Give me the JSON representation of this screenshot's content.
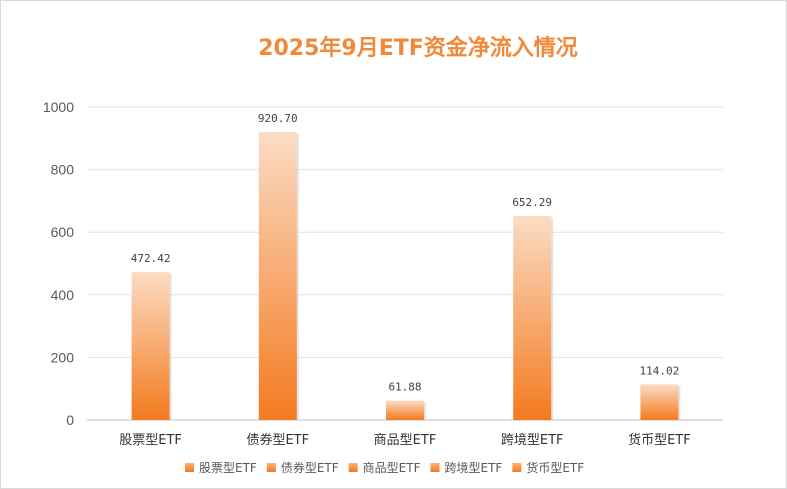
{
  "chart_data": {
    "type": "bar",
    "title": "2025年9月ETF资金净流入情况",
    "categories": [
      "股票型ETF",
      "债券型ETF",
      "商品型ETF",
      "跨境型ETF",
      "货币型ETF"
    ],
    "values": [
      472.42,
      920.7,
      61.88,
      652.29,
      114.02
    ],
    "value_labels": [
      "472.42",
      "920.70",
      "61.88",
      "652.29",
      "114.02"
    ],
    "yticks": [
      "0",
      "200",
      "400",
      "600",
      "800",
      "1000"
    ],
    "ylim": [
      0,
      1000
    ],
    "xlabel": "",
    "ylabel": "",
    "grid": true,
    "legend": "bottom",
    "colors": {
      "bar_top": "#fbdcc4",
      "bar_bottom": "#f47a1f",
      "title": "#f08a3a"
    }
  }
}
